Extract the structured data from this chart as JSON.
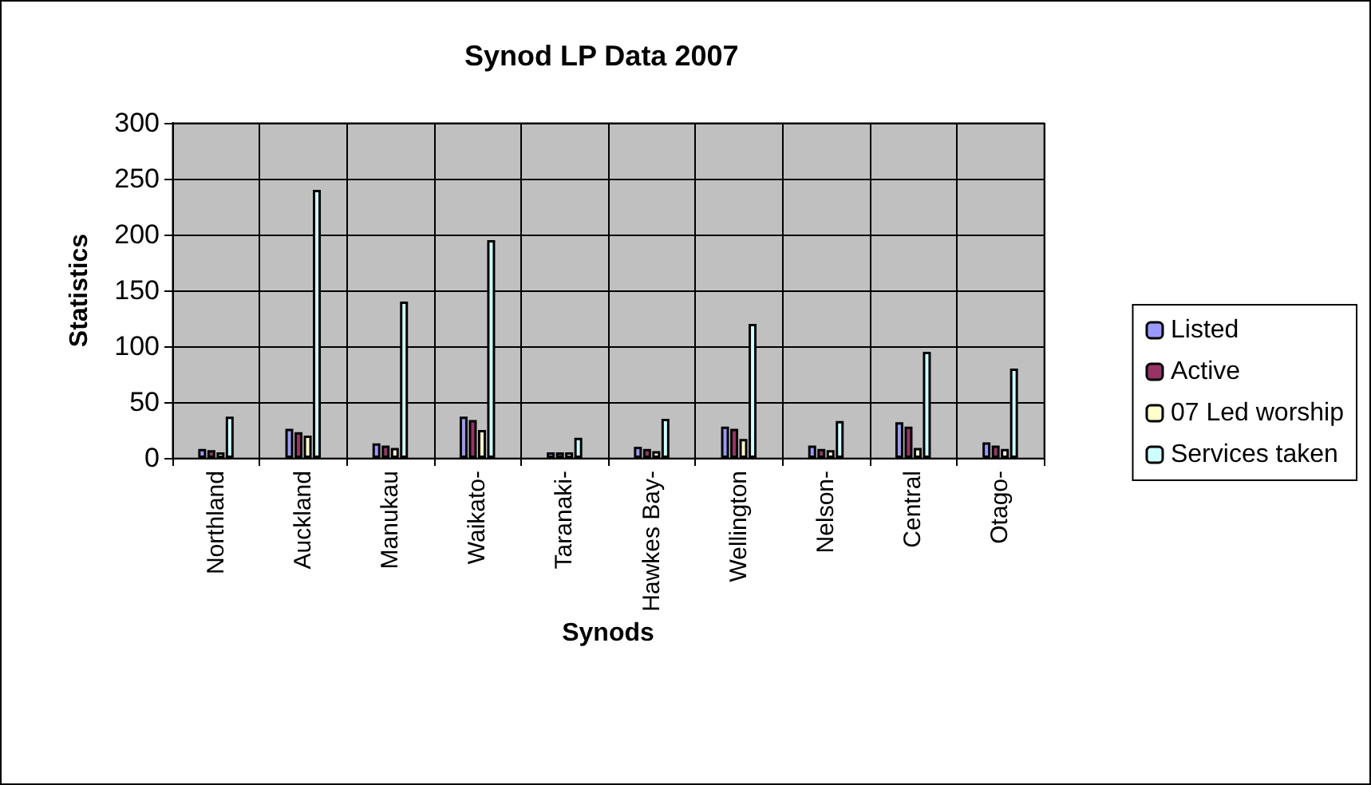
{
  "chart_data": {
    "type": "bar",
    "title": "Synod LP Data 2007",
    "xlabel": "Synods",
    "ylabel": "Statistics",
    "categories": [
      "Northland",
      "Auckland",
      "Manukau",
      "Waikato-",
      "Taranaki-",
      "Hawkes Bay-",
      "Wellington",
      "Nelson-",
      "Central",
      "Otago-"
    ],
    "series": [
      {
        "name": "Listed",
        "color": "#9999ff",
        "values": [
          8,
          26,
          13,
          37,
          5,
          10,
          28,
          11,
          32,
          14
        ]
      },
      {
        "name": "Active",
        "color": "#993366",
        "values": [
          7,
          23,
          11,
          34,
          5,
          8,
          26,
          8,
          28,
          11
        ]
      },
      {
        "name": "07 Led worship",
        "color": "#ffffcc",
        "values": [
          5,
          20,
          9,
          25,
          5,
          6,
          17,
          7,
          9,
          8
        ]
      },
      {
        "name": "Services taken",
        "color": "#ccffff",
        "values": [
          37,
          240,
          140,
          195,
          18,
          35,
          120,
          33,
          95,
          80
        ]
      }
    ],
    "ylim": [
      0,
      300
    ],
    "yticks": [
      0,
      50,
      100,
      150,
      200,
      250,
      300
    ],
    "grid": true,
    "legend": "right"
  }
}
